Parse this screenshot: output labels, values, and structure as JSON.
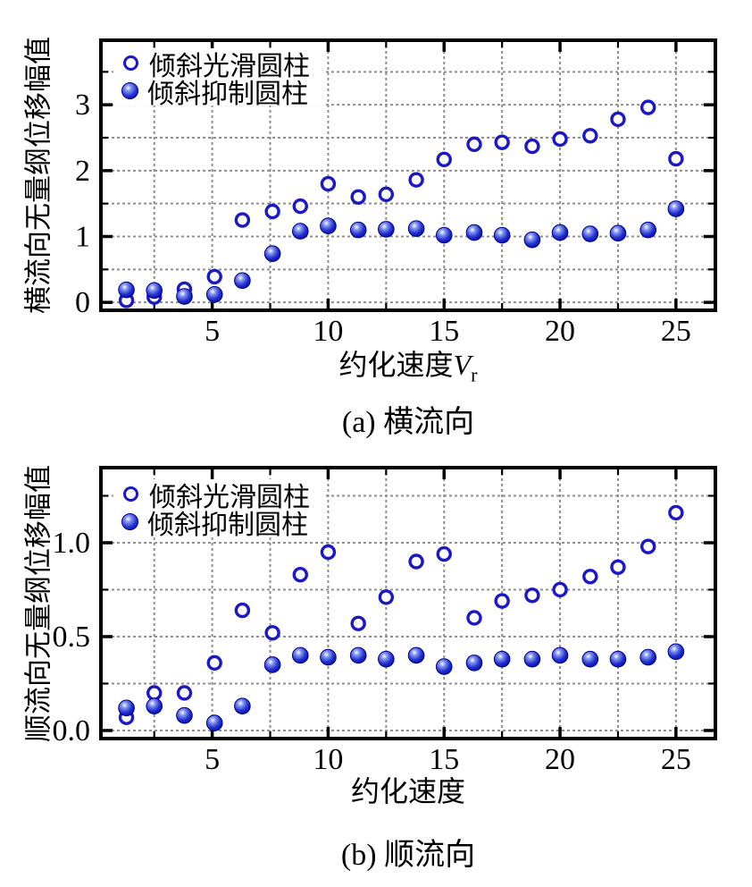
{
  "colors": {
    "marker_blue": "#1a18c8",
    "sphere_dark": "#0000a0",
    "sphere_mid": "#2030cf",
    "grid_gray": "#8f8f8f",
    "axis_black": "#000000",
    "background": "#ffffff"
  },
  "chart_data": [
    {
      "id": "a",
      "type": "scatter",
      "caption": "(a) 横流向",
      "xlabel": "约化速度Vr",
      "xlabel_prefix": "约化速度",
      "xlabel_var": "V",
      "xlabel_sub": "r",
      "ylabel": "横流向无量纲位移幅值",
      "grid": true,
      "legend_position": "top-left",
      "xlim": [
        0.2,
        26.7
      ],
      "ylim": [
        -0.12,
        3.98
      ],
      "x_ticks": {
        "major": [
          5,
          10,
          15,
          20,
          25
        ],
        "labels": [
          "5",
          "10",
          "15",
          "20",
          "25"
        ],
        "minor": [
          2.5,
          7.5,
          12.5,
          17.5,
          22.5
        ]
      },
      "y_ticks": {
        "major": [
          0,
          1,
          2,
          3
        ],
        "labels": [
          "0",
          "1",
          "2",
          "3"
        ],
        "minor": [
          0.5,
          1.5,
          2.5,
          3.5
        ]
      },
      "x_grid": [
        2.5,
        5,
        7.5,
        10,
        12.5,
        15,
        17.5,
        20,
        22.5,
        25
      ],
      "y_grid": [
        0,
        0.5,
        1,
        1.5,
        2,
        2.5,
        3,
        3.5
      ],
      "x": [
        1.3,
        2.5,
        3.8,
        5.1,
        6.3,
        7.6,
        8.8,
        10,
        11.3,
        12.5,
        13.8,
        15,
        16.3,
        17.5,
        18.8,
        20,
        21.3,
        22.5,
        23.8,
        25
      ],
      "series": [
        {
          "name": "倾斜光滑圆柱",
          "marker": "open-circle",
          "values": [
            0.03,
            0.08,
            0.2,
            0.39,
            1.25,
            1.38,
            1.46,
            1.8,
            1.6,
            1.64,
            1.86,
            2.17,
            2.4,
            2.43,
            2.37,
            2.48,
            2.53,
            2.78,
            2.96,
            2.18
          ]
        },
        {
          "name": "倾斜抑制圆柱",
          "marker": "filled-circle",
          "values": [
            0.19,
            0.18,
            0.09,
            0.12,
            0.33,
            0.74,
            1.08,
            1.16,
            1.1,
            1.11,
            1.12,
            1.02,
            1.06,
            1.02,
            0.95,
            1.06,
            1.04,
            1.05,
            1.1,
            1.42
          ]
        }
      ]
    },
    {
      "id": "b",
      "type": "scatter",
      "caption": "(b) 顺流向",
      "xlabel": "约化速度",
      "xlabel_prefix": "约化速度",
      "xlabel_var": "",
      "xlabel_sub": "",
      "ylabel": "顺流向无量纲位移幅值",
      "grid": true,
      "legend_position": "top-left",
      "xlim": [
        0.2,
        26.7
      ],
      "ylim": [
        -0.043,
        1.4
      ],
      "x_ticks": {
        "major": [
          5,
          10,
          15,
          20,
          25
        ],
        "labels": [
          "5",
          "10",
          "15",
          "20",
          "25"
        ],
        "minor": [
          2.5,
          7.5,
          12.5,
          17.5,
          22.5
        ]
      },
      "y_ticks": {
        "major": [
          0,
          0.5,
          1
        ],
        "labels": [
          "0.0",
          "0.5",
          "1.0"
        ],
        "minor": [
          0.25,
          0.75,
          1.25
        ]
      },
      "x_grid": [
        2.5,
        5,
        7.5,
        10,
        12.5,
        15,
        17.5,
        20,
        22.5,
        25
      ],
      "y_grid": [
        0,
        0.25,
        0.5,
        0.75,
        1,
        1.25
      ],
      "x": [
        1.3,
        2.5,
        3.8,
        5.1,
        6.3,
        7.6,
        8.8,
        10,
        11.3,
        12.5,
        13.8,
        15,
        16.3,
        17.5,
        18.8,
        20,
        21.3,
        22.5,
        23.8,
        25
      ],
      "series": [
        {
          "name": "倾斜光滑圆柱",
          "marker": "open-circle",
          "values": [
            0.07,
            0.2,
            0.2,
            0.36,
            0.64,
            0.52,
            0.83,
            0.95,
            0.57,
            0.71,
            0.9,
            0.94,
            0.6,
            0.69,
            0.72,
            0.75,
            0.82,
            0.87,
            0.98,
            1.16
          ]
        },
        {
          "name": "倾斜抑制圆柱",
          "marker": "filled-circle",
          "values": [
            0.12,
            0.13,
            0.08,
            0.04,
            0.13,
            0.35,
            0.4,
            0.39,
            0.4,
            0.38,
            0.4,
            0.34,
            0.36,
            0.38,
            0.38,
            0.4,
            0.38,
            0.38,
            0.39,
            0.42
          ]
        }
      ]
    }
  ]
}
